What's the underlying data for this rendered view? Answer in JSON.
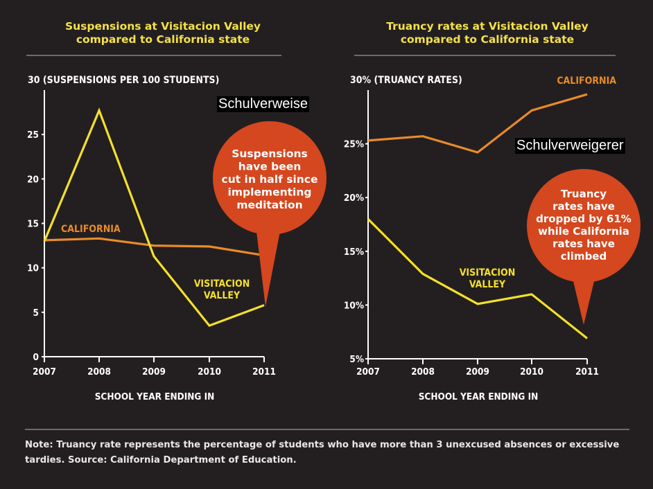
{
  "chart_data": [
    {
      "type": "line",
      "title": "Suspensions at Visitacion Valley compared to California state",
      "ylabel": "30 (SUSPENSIONS PER 100 STUDENTS)",
      "xlabel": "SCHOOL YEAR ENDING IN",
      "x": [
        "2007",
        "2008",
        "2009",
        "2010",
        "2011"
      ],
      "y_ticks": [
        "0",
        "5",
        "10",
        "15",
        "20",
        "25"
      ],
      "ylim": [
        0,
        30
      ],
      "series": [
        {
          "name": "CALIFORNIA",
          "color": "#e98b2a",
          "values": [
            13.1,
            13.3,
            12.5,
            12.4,
            11.4
          ]
        },
        {
          "name": "VISITACION VALLEY",
          "color": "#f5e02c",
          "values": [
            13.0,
            27.7,
            11.3,
            3.5,
            5.8
          ]
        }
      ],
      "callout": "Suspensions have been cut in half since implementing meditation",
      "callout_lines": [
        "Suspensions",
        "have been",
        "cut in half since",
        "implementing",
        "meditation"
      ],
      "series_label_lines": {
        "california": [
          "CALIFORNIA"
        ],
        "visitacion": [
          "VISITACION",
          "VALLEY"
        ]
      }
    },
    {
      "type": "line",
      "title": "Truancy rates at Visitacion Valley compared to California state",
      "ylabel": "30% (TRUANCY RATES)",
      "xlabel": "SCHOOL YEAR ENDING IN",
      "x": [
        "2007",
        "2008",
        "2009",
        "2010",
        "2011"
      ],
      "y_ticks": [
        "5%",
        "10%",
        "15%",
        "20%",
        "25%"
      ],
      "ylim": [
        5,
        30
      ],
      "series": [
        {
          "name": "CALIFORNIA",
          "color": "#e98b2a",
          "values": [
            25.3,
            25.7,
            24.2,
            28.1,
            29.6
          ]
        },
        {
          "name": "VISITACION VALLEY",
          "color": "#f5e02c",
          "values": [
            18.0,
            12.9,
            10.1,
            11.0,
            6.9
          ]
        }
      ],
      "callout": "Truancy rates have dropped by 61% while California rates have climbed",
      "callout_lines": [
        "Truancy",
        "rates have",
        "dropped by 61%",
        "while California",
        "rates have",
        "climbed"
      ],
      "series_label_lines": {
        "california": [
          "CALIFORNIA"
        ],
        "visitacion": [
          "VISITACION",
          "VALLEY"
        ]
      }
    }
  ],
  "titles": {
    "left_line1": "Suspensions at Visitacion Valley",
    "left_line2": "compared to California state",
    "right_line1": "Truancy rates at Visitacion Valley",
    "right_line2": "compared to California state"
  },
  "note": "Note: Truancy rate represents the percentage of students who have more than 3 unexcused absences or excessive tardies. Source: California Department of Education.",
  "overlays": {
    "left": "Schulverweise",
    "right": "Schulverweigerer"
  },
  "colors": {
    "background": "#231f20",
    "title": "#f5e14a",
    "california": "#e98b2a",
    "visitacion": "#f5e02c",
    "callout": "#d4471f"
  }
}
